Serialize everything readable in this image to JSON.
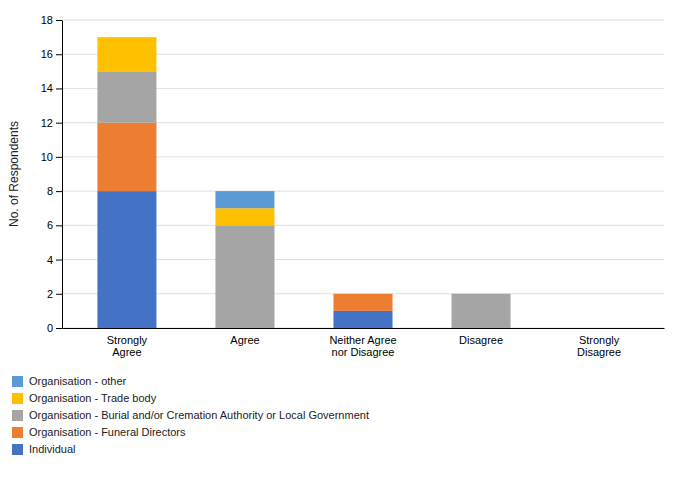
{
  "chart_data": {
    "type": "bar",
    "stacked": true,
    "categories": [
      "Strongly\nAgree",
      "Agree",
      "Neither Agree\nnor Disagree",
      "Disagree",
      "Strongly\nDisagree"
    ],
    "series": [
      {
        "name": "Individual",
        "color": "#4472C4",
        "values": [
          8,
          0,
          1,
          0,
          0
        ]
      },
      {
        "name": "Organisation - Funeral Directors",
        "color": "#ED7D31",
        "values": [
          4,
          0,
          1,
          0,
          0
        ]
      },
      {
        "name": "Organisation - Burial and/or Cremation Authority or Local Government",
        "color": "#A5A5A5",
        "values": [
          3,
          6,
          0,
          2,
          0
        ]
      },
      {
        "name": "Organisation - Trade body",
        "color": "#FFC000",
        "values": [
          2,
          1,
          0,
          0,
          0
        ]
      },
      {
        "name": "Organisation - other",
        "color": "#5B9BD5",
        "values": [
          0,
          1,
          0,
          0,
          0
        ]
      }
    ],
    "ylabel": "No. of Respondents",
    "ylim": [
      0,
      18
    ],
    "yticks": [
      0,
      2,
      4,
      6,
      8,
      10,
      12,
      14,
      16,
      18
    ],
    "grid": true,
    "legend": "bottom"
  }
}
